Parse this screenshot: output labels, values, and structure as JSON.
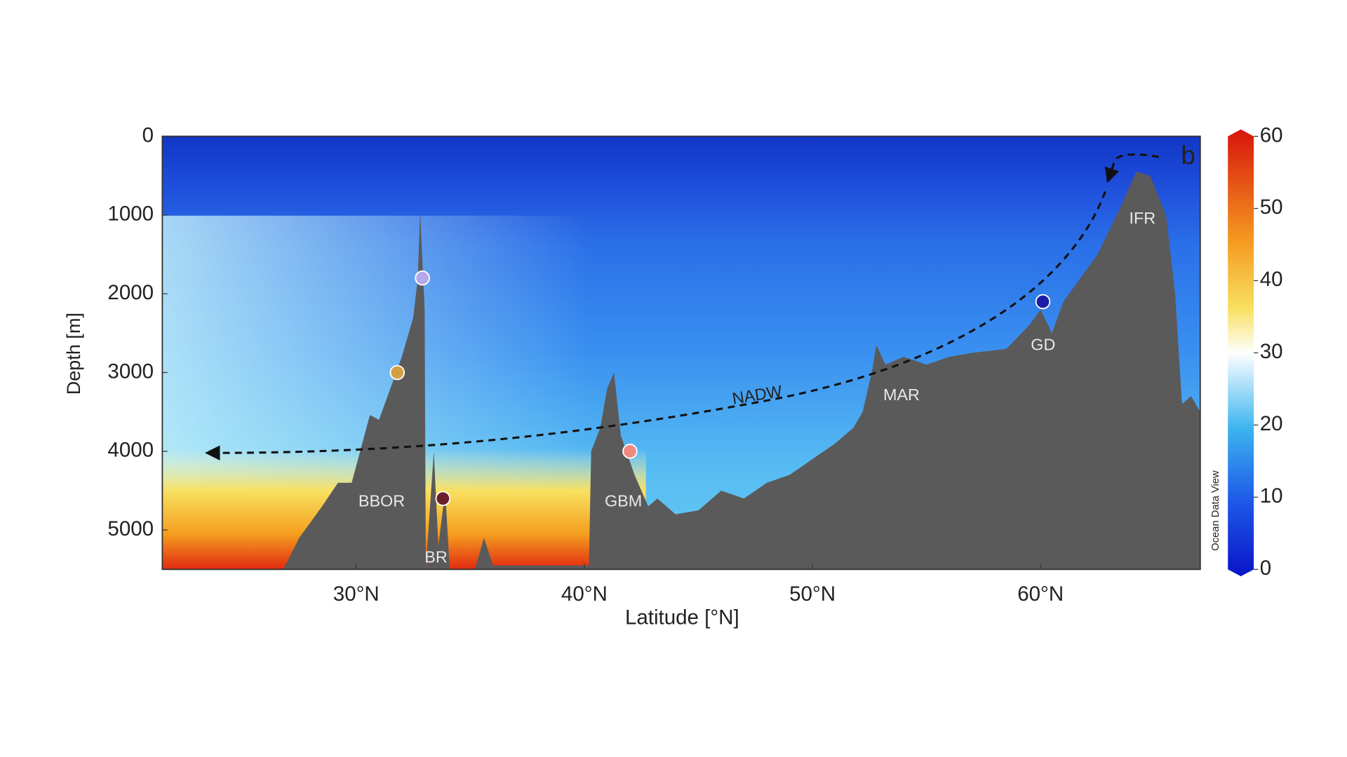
{
  "chart_data": {
    "type": "section",
    "panel_label": "b",
    "x_label": "Latitude [°N]",
    "y_label": "Depth [m]",
    "xlim": [
      21.5,
      67
    ],
    "ylim": [
      0,
      5500
    ],
    "y_inverted": true,
    "xticks": [
      {
        "value": 30,
        "label": "30°N"
      },
      {
        "value": 40,
        "label": "40°N"
      },
      {
        "value": 50,
        "label": "50°N"
      },
      {
        "value": 60,
        "label": "60°N"
      }
    ],
    "yticks": [
      0,
      1000,
      2000,
      3000,
      4000,
      5000
    ],
    "colorbar": {
      "label": "Ocean Data View",
      "lim": [
        0,
        60
      ],
      "ticks": [
        0,
        10,
        20,
        30,
        40,
        50,
        60
      ]
    },
    "bathymetry": {
      "color": "#5a5a5a",
      "x": [
        26.8,
        27.5,
        28.5,
        29.2,
        29.8,
        30.6,
        31.0,
        31.5,
        32.0,
        32.5,
        32.7,
        32.8,
        33.0,
        33.05,
        33.4,
        33.6,
        33.9,
        34.1,
        35.2,
        35.6,
        36.0,
        40.2,
        40.3,
        40.7,
        41.0,
        41.3,
        41.6,
        42.2,
        42.8,
        43.2,
        44.0,
        45.0,
        46.0,
        47.0,
        48.0,
        49.0,
        50.0,
        51.0,
        51.8,
        52.2,
        52.6,
        52.8,
        53.2,
        54.0,
        55.0,
        56.0,
        57.0,
        58.5,
        59.5,
        60.0,
        60.5,
        61.0,
        61.5,
        62.5,
        63.5,
        64.2,
        64.8,
        65.5,
        65.9,
        66.2,
        66.6,
        67.0
      ],
      "values": [
        5500,
        5100,
        4700,
        4400,
        4400,
        3540,
        3600,
        3200,
        2800,
        2300,
        1800,
        950,
        2200,
        5500,
        4000,
        5200,
        4500,
        5500,
        5500,
        5100,
        5450,
        5450,
        4000,
        3700,
        3200,
        3000,
        3800,
        4300,
        4700,
        4600,
        4800,
        4750,
        4500,
        4600,
        4400,
        4300,
        4100,
        3900,
        3700,
        3500,
        3000,
        2650,
        2900,
        2800,
        2900,
        2800,
        2750,
        2700,
        2400,
        2200,
        2500,
        2100,
        1900,
        1500,
        900,
        450,
        500,
        1000,
        2000,
        3400,
        3300,
        3500
      ]
    },
    "points": {
      "x": [
        32.9,
        31.8,
        33.8,
        42.0,
        60.1
      ],
      "values": [
        1800,
        3000,
        4600,
        4000,
        2100
      ],
      "colors": [
        "#b3a8ec",
        "#d2a045",
        "#6b1f2a",
        "#f08a80",
        "#1c1ca8"
      ]
    },
    "annotations": [
      "BBOR",
      "BR",
      "GBM",
      "MAR",
      "GD",
      "IFR",
      "NADW"
    ]
  }
}
